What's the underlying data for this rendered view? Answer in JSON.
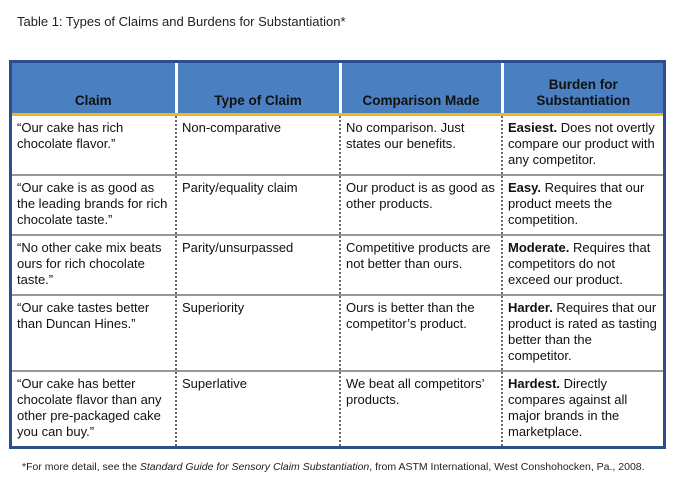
{
  "title": "Table 1: Types of Claims and Burdens for Substantiation*",
  "headers": [
    "Claim",
    "Type of Claim",
    "Comparison Made",
    "Burden for Substantiation"
  ],
  "rows": [
    {
      "claim": "“Our cake has rich chocolate flavor.”",
      "type": "Non-comparative",
      "comparison": "No comparison. Just states our benefits.",
      "burden_level": "Easiest.",
      "burden_text": " Does not overtly compare our product with any competitor."
    },
    {
      "claim": "“Our cake is as good as the leading brands for rich chocolate taste.”",
      "type": "Parity/equality claim",
      "comparison": "Our product is as good as other products.",
      "burden_level": "Easy.",
      "burden_text": " Requires that our product meets the competition."
    },
    {
      "claim": "“No other cake mix beats ours for rich chocolate taste.”",
      "type": "Parity/unsurpassed",
      "comparison": "Competitive products are not better than ours.",
      "burden_level": "Moderate.",
      "burden_text": " Requires that competitors do not exceed our product."
    },
    {
      "claim": "“Our cake tastes better than Duncan Hines.”",
      "type": "Superiority",
      "comparison": "Ours is better than the competitor’s product.",
      "burden_level": "Harder.",
      "burden_text": " Requires that our product is rated as tasting better than the competitor."
    },
    {
      "claim": "“Our cake has better chocolate flavor than any other pre-packaged cake you can buy.”",
      "type": "Superlative",
      "comparison": "We beat all competitors’ products.",
      "burden_level": "Hardest.",
      "burden_text": " Directly compares against all major brands in the marketplace."
    }
  ],
  "footnote": {
    "prefix": "*For more detail, see the ",
    "source_title": "Standard Guide for Sensory Claim Substantiation",
    "suffix": ", from ASTM International, West Conshohocken, Pa., 2008."
  },
  "colors": {
    "header_bg": "#4a7fc1",
    "border": "#2b4f8d",
    "accent_rule": "#f3b51b"
  }
}
